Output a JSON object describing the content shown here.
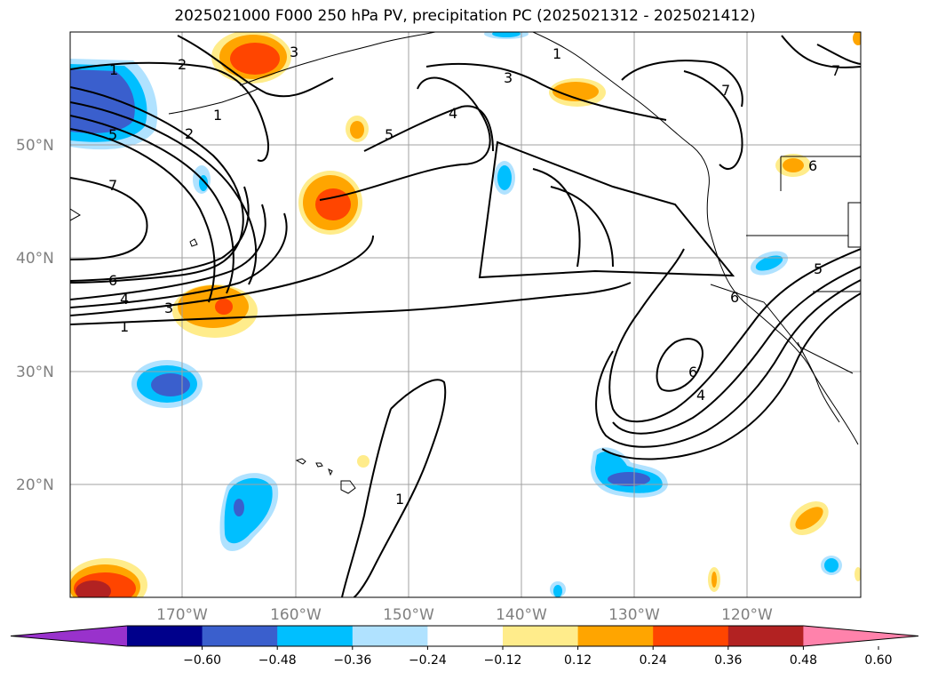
{
  "title": "2025021000 F000 250 hPa PV, precipitation PC (2025021312 - 2025021412)",
  "lat_labels": [
    "50°N",
    "40°N",
    "30°N",
    "20°N"
  ],
  "lon_labels": [
    "170°W",
    "160°W",
    "150°W",
    "140°W",
    "130°W",
    "120°W"
  ],
  "colorbar": {
    "ticks": [
      "−0.60",
      "−0.48",
      "−0.36",
      "−0.24",
      "−0.12",
      "0.12",
      "0.24",
      "0.36",
      "0.48",
      "0.60"
    ],
    "colors": [
      "#9932cc",
      "#00008b",
      "#3a5fcd",
      "#00bfff",
      "#b0e2ff",
      "#ffffff",
      "#ffec8b",
      "#ffa500",
      "#ff4500",
      "#b22222",
      "#ff82ab"
    ]
  },
  "contour_labels": [
    "1",
    "2",
    "1",
    "3",
    "5",
    "2",
    "7",
    "6",
    "4",
    "3",
    "1",
    "3",
    "4",
    "5",
    "6",
    "4",
    "1",
    "7",
    "7",
    "6",
    "5",
    "6",
    "1"
  ]
}
